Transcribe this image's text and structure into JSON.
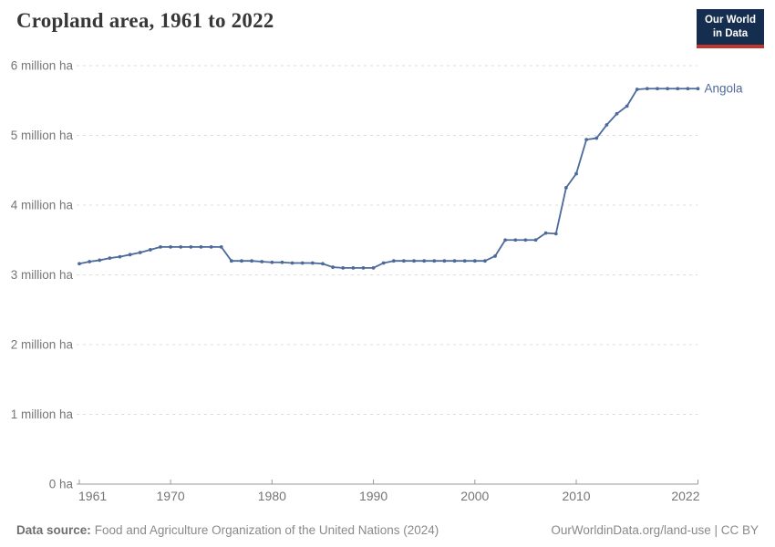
{
  "header": {
    "title": "Cropland area, 1961 to 2022",
    "logo": {
      "line1": "Our World",
      "line2": "in Data"
    }
  },
  "colors": {
    "line": "#4C6A9C",
    "logo_bg": "#152D4F",
    "logo_red": "#C0362C",
    "axis": "#9A9A9A",
    "gridline": "#DCDCDC",
    "tick_text": "#757575"
  },
  "chart_data": {
    "type": "line",
    "title": "Cropland area, 1961 to 2022",
    "values_unit": "million ha",
    "grid": "horizontal-dashed",
    "legend": "end-of-line-label",
    "y_axis": {
      "min": 0,
      "max": 6,
      "ticks": [
        {
          "value": 0,
          "label": "0 ha"
        },
        {
          "value": 1,
          "label": "1 million ha"
        },
        {
          "value": 2,
          "label": "2 million ha"
        },
        {
          "value": 3,
          "label": "3 million ha"
        },
        {
          "value": 4,
          "label": "4 million ha"
        },
        {
          "value": 5,
          "label": "5 million ha"
        },
        {
          "value": 6,
          "label": "6 million ha"
        }
      ]
    },
    "x_axis": {
      "min": 1961,
      "max": 2022,
      "ticks": [
        {
          "value": 1961,
          "label": "1961"
        },
        {
          "value": 1970,
          "label": "1970"
        },
        {
          "value": 1980,
          "label": "1980"
        },
        {
          "value": 1990,
          "label": "1990"
        },
        {
          "value": 2000,
          "label": "2000"
        },
        {
          "value": 2010,
          "label": "2010"
        },
        {
          "value": 2022,
          "label": "2022"
        }
      ]
    },
    "series": [
      {
        "name": "Angola",
        "color": "#4C6A9C",
        "x": [
          1961,
          1962,
          1963,
          1964,
          1965,
          1966,
          1967,
          1968,
          1969,
          1970,
          1971,
          1972,
          1973,
          1974,
          1975,
          1976,
          1977,
          1978,
          1979,
          1980,
          1981,
          1982,
          1983,
          1984,
          1985,
          1986,
          1987,
          1988,
          1989,
          1990,
          1991,
          1992,
          1993,
          1994,
          1995,
          1996,
          1997,
          1998,
          1999,
          2000,
          2001,
          2002,
          2003,
          2004,
          2005,
          2006,
          2007,
          2008,
          2009,
          2010,
          2011,
          2012,
          2013,
          2014,
          2015,
          2016,
          2017,
          2018,
          2019,
          2020,
          2021,
          2022
        ],
        "values": [
          3.16,
          3.19,
          3.21,
          3.24,
          3.26,
          3.29,
          3.32,
          3.36,
          3.4,
          3.4,
          3.4,
          3.4,
          3.4,
          3.4,
          3.4,
          3.2,
          3.2,
          3.2,
          3.19,
          3.18,
          3.18,
          3.17,
          3.17,
          3.17,
          3.16,
          3.11,
          3.1,
          3.1,
          3.1,
          3.1,
          3.17,
          3.2,
          3.2,
          3.2,
          3.2,
          3.2,
          3.2,
          3.2,
          3.2,
          3.2,
          3.2,
          3.27,
          3.5,
          3.5,
          3.5,
          3.5,
          3.6,
          3.59,
          4.25,
          4.45,
          4.94,
          4.96,
          5.15,
          5.31,
          5.42,
          5.66,
          5.67,
          5.67,
          5.67,
          5.67,
          5.67,
          5.67
        ]
      }
    ]
  },
  "footer": {
    "source_label": "Data source:",
    "source_text": "Food and Agriculture Organization of the United Nations (2024)",
    "credit": "OurWorldinData.org/land-use | CC BY"
  }
}
